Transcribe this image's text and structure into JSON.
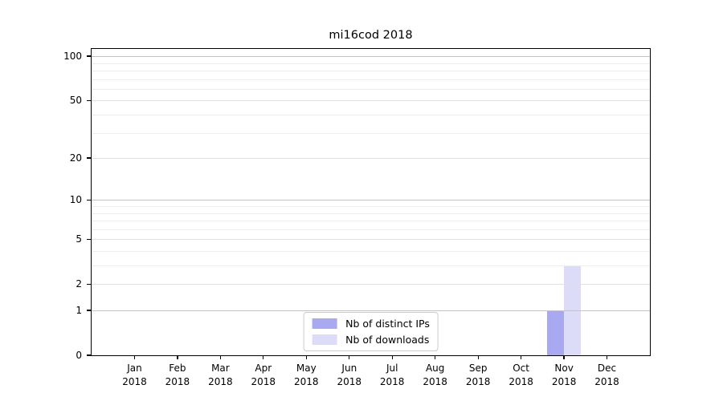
{
  "chart_data": {
    "type": "bar",
    "title": "mi16cod 2018",
    "yscale": "log1p",
    "ylim": [
      0,
      112
    ],
    "yticks": [
      0,
      1,
      2,
      5,
      10,
      20,
      50,
      100
    ],
    "minor_yticks": [
      3,
      4,
      6,
      7,
      8,
      9,
      30,
      40,
      60,
      70,
      80,
      90
    ],
    "grid": true,
    "categories": [
      {
        "label": "Jan",
        "sublabel": "2018"
      },
      {
        "label": "Feb",
        "sublabel": "2018"
      },
      {
        "label": "Mar",
        "sublabel": "2018"
      },
      {
        "label": "Apr",
        "sublabel": "2018"
      },
      {
        "label": "May",
        "sublabel": "2018"
      },
      {
        "label": "Jun",
        "sublabel": "2018"
      },
      {
        "label": "Jul",
        "sublabel": "2018"
      },
      {
        "label": "Aug",
        "sublabel": "2018"
      },
      {
        "label": "Sep",
        "sublabel": "2018"
      },
      {
        "label": "Oct",
        "sublabel": "2018"
      },
      {
        "label": "Nov",
        "sublabel": "2018"
      },
      {
        "label": "Dec",
        "sublabel": "2018"
      }
    ],
    "series": [
      {
        "name": "Nb of distinct IPs",
        "color": "#a9a9f1",
        "values": [
          0,
          0,
          0,
          0,
          0,
          0,
          0,
          0,
          0,
          0,
          1,
          0
        ]
      },
      {
        "name": "Nb of downloads",
        "color": "#dcdcf8",
        "values": [
          0,
          0,
          0,
          0,
          0,
          0,
          0,
          0,
          0,
          0,
          3,
          0
        ]
      }
    ],
    "legend": {
      "position": "bottom-center"
    }
  },
  "colors": {
    "background": "#ffffff",
    "spine": "#000000",
    "grid_decade": "#c4c4c4",
    "grid_major": "#e0e0e0",
    "grid_minor": "#ededed",
    "legend_border": "#cccccc",
    "text": "#000000"
  }
}
